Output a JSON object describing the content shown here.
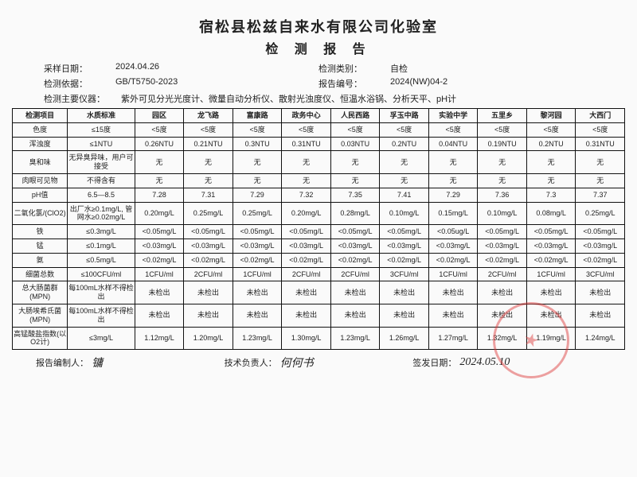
{
  "header": {
    "company": "宿松县松兹自来水有限公司化验室",
    "report_title": "检 测 报 告"
  },
  "meta": {
    "sample_date_label": "采样日期：",
    "sample_date": "2024.04.26",
    "type_label": "检测类别：",
    "type": "自检",
    "basis_label": "检测依据：",
    "basis": "GB/T5750-2023",
    "no_label": "报告编号：",
    "no": "2024(NW)04-2",
    "instruments_label": "检测主要仪器：",
    "instruments": "紫外可见分光光度计、微量自动分析仪、散射光浊度仪、恒温水浴锅、分析天平、pH计"
  },
  "columns": {
    "param_header": "检测项目",
    "std_header": "水质标准",
    "locations": [
      "园区",
      "龙飞路",
      "富康路",
      "政务中心",
      "人民西路",
      "孚玉中路",
      "实验中学",
      "五里乡",
      "黎河园",
      "大西门"
    ]
  },
  "rows": [
    {
      "param": "色度",
      "std": "≤15度",
      "vals": [
        "<5度",
        "<5度",
        "<5度",
        "<5度",
        "<5度",
        "<5度",
        "<5度",
        "<5度",
        "<5度",
        "<5度"
      ]
    },
    {
      "param": "浑浊度",
      "std": "≤1NTU",
      "vals": [
        "0.26NTU",
        "0.21NTU",
        "0.3NTU",
        "0.31NTU",
        "0.03NTU",
        "0.2NTU",
        "0.04NTU",
        "0.19NTU",
        "0.2NTU",
        "0.31NTU"
      ]
    },
    {
      "param": "臭和味",
      "std": "无异臭异味，用户可接受",
      "vals": [
        "无",
        "无",
        "无",
        "无",
        "无",
        "无",
        "无",
        "无",
        "无",
        "无"
      ]
    },
    {
      "param": "肉眼可见物",
      "std": "不得含有",
      "vals": [
        "无",
        "无",
        "无",
        "无",
        "无",
        "无",
        "无",
        "无",
        "无",
        "无"
      ]
    },
    {
      "param": "pH值",
      "std": "6.5—8.5",
      "vals": [
        "7.28",
        "7.31",
        "7.29",
        "7.32",
        "7.35",
        "7.41",
        "7.29",
        "7.36",
        "7.3",
        "7.37"
      ]
    },
    {
      "param": "二氧化氯/(ClO2)",
      "std": "出厂水≥0.1mg/L, 管网水≥0.02mg/L",
      "vals": [
        "0.20mg/L",
        "0.25mg/L",
        "0.25mg/L",
        "0.20mg/L",
        "0.28mg/L",
        "0.10mg/L",
        "0.15mg/L",
        "0.10mg/L",
        "0.08mg/L",
        "0.25mg/L"
      ]
    },
    {
      "param": "铁",
      "std": "≤0.3mg/L",
      "vals": [
        "<0.05mg/L",
        "<0.05mg/L",
        "<0.05mg/L",
        "<0.05mg/L",
        "<0.05mg/L",
        "<0.05mg/L",
        "<0.05ug/L",
        "<0.05mg/L",
        "<0.05mg/L",
        "<0.05mg/L"
      ]
    },
    {
      "param": "锰",
      "std": "≤0.1mg/L",
      "vals": [
        "<0.03mg/L",
        "<0.03mg/L",
        "<0.03mg/L",
        "<0.03mg/L",
        "<0.03mg/L",
        "<0.03mg/L",
        "<0.03mg/L",
        "<0.03mg/L",
        "<0.03mg/L",
        "<0.03mg/L"
      ]
    },
    {
      "param": "氨",
      "std": "≤0.5mg/L",
      "vals": [
        "<0.02mg/L",
        "<0.02mg/L",
        "<0.02mg/L",
        "<0.02mg/L",
        "<0.02mg/L",
        "<0.02mg/L",
        "<0.02mg/L",
        "<0.02mg/L",
        "<0.02mg/L",
        "<0.02mg/L"
      ]
    },
    {
      "param": "细菌总数",
      "std": "≤100CFU/ml",
      "vals": [
        "1CFU/ml",
        "2CFU/ml",
        "1CFU/ml",
        "2CFU/ml",
        "2CFU/ml",
        "3CFU/ml",
        "1CFU/ml",
        "2CFU/ml",
        "1CFU/ml",
        "3CFU/ml"
      ]
    },
    {
      "param": "总大肠菌群 (MPN)",
      "std": "每100mL水样不得检出",
      "vals": [
        "未检出",
        "未检出",
        "未检出",
        "未检出",
        "未检出",
        "未检出",
        "未检出",
        "未检出",
        "未检出",
        "未检出"
      ]
    },
    {
      "param": "大肠埃希氏菌 (MPN)",
      "std": "每100mL水样不得检出",
      "vals": [
        "未检出",
        "未检出",
        "未检出",
        "未检出",
        "未检出",
        "未检出",
        "未检出",
        "未检出",
        "未检出",
        "未检出"
      ]
    },
    {
      "param": "高锰酸盐指数(以O2计)",
      "std": "≤3mg/L",
      "vals": [
        "1.12mg/L",
        "1.20mg/L",
        "1.23mg/L",
        "1.30mg/L",
        "1.23mg/L",
        "1.26mg/L",
        "1.27mg/L",
        "1.32mg/L",
        "1.19mg/L",
        "1.24mg/L"
      ]
    }
  ],
  "footer": {
    "prepared_label": "报告编制人：",
    "prepared_sig": "镛",
    "tech_label": "技术负责人：",
    "tech_sig": "何何书",
    "issue_label": "签发日期：",
    "issue_date": "2024.05.10"
  }
}
